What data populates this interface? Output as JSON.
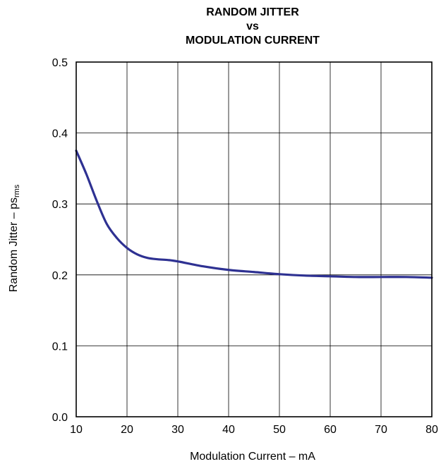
{
  "chart_data": {
    "type": "line",
    "title_lines": [
      "RANDOM JITTER",
      "vs",
      "MODULATION CURRENT"
    ],
    "xlabel": "Modulation Current – mA",
    "ylabel_main": "Random Jitter – ps",
    "ylabel_sub": "rms",
    "xlim": [
      10,
      80
    ],
    "ylim": [
      0.0,
      0.5
    ],
    "x_ticks": [
      "10",
      "20",
      "30",
      "40",
      "50",
      "60",
      "70",
      "80"
    ],
    "y_ticks": [
      "0.0",
      "0.1",
      "0.2",
      "0.3",
      "0.4",
      "0.5"
    ],
    "grid": true,
    "series": [
      {
        "color": "#2e3192",
        "x": [
          10,
          12,
          14,
          16,
          18,
          20,
          22,
          24,
          26,
          28,
          30,
          35,
          40,
          45,
          50,
          55,
          60,
          65,
          70,
          75,
          80
        ],
        "y": [
          0.375,
          0.342,
          0.305,
          0.272,
          0.252,
          0.238,
          0.229,
          0.224,
          0.222,
          0.221,
          0.219,
          0.212,
          0.207,
          0.204,
          0.201,
          0.199,
          0.198,
          0.197,
          0.197,
          0.197,
          0.196
        ]
      }
    ]
  }
}
